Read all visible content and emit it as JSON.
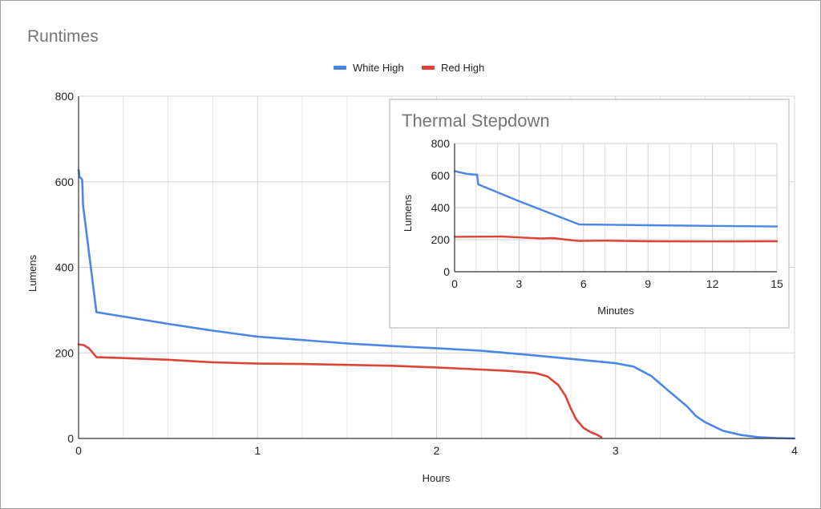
{
  "chart_data": [
    {
      "type": "line",
      "title": "Runtimes",
      "xlabel": "Hours",
      "ylabel": "Lumens",
      "xlim": [
        0,
        4
      ],
      "ylim": [
        0,
        800
      ],
      "x_ticks": [
        "0",
        "1",
        "2",
        "3",
        "4"
      ],
      "y_ticks": [
        "0",
        "200",
        "400",
        "600",
        "800"
      ],
      "x_tick_values": [
        0,
        1,
        2,
        3,
        4
      ],
      "y_tick_values": [
        0,
        200,
        400,
        600,
        800
      ],
      "x_minor_step": 0.25,
      "grid": true,
      "legend": {
        "position": "top",
        "entries": [
          "White High",
          "Red High"
        ]
      },
      "series": [
        {
          "name": "White High",
          "color": "#4a86e8",
          "x": [
            0,
            0.005,
            0.02,
            0.025,
            0.1,
            0.25,
            0.5,
            0.75,
            1.0,
            1.25,
            1.5,
            1.75,
            2.0,
            2.25,
            2.5,
            2.75,
            2.9,
            3.0,
            3.1,
            3.2,
            3.3,
            3.4,
            3.45,
            3.5,
            3.6,
            3.7,
            3.8,
            3.9,
            4.0
          ],
          "y": [
            628,
            612,
            605,
            545,
            295,
            285,
            268,
            252,
            238,
            230,
            222,
            216,
            211,
            205,
            196,
            186,
            180,
            176,
            168,
            146,
            110,
            75,
            52,
            38,
            18,
            8,
            3,
            1,
            0
          ]
        },
        {
          "name": "Red High",
          "color": "#db4437",
          "x": [
            0,
            0.03,
            0.06,
            0.08,
            0.1,
            0.25,
            0.5,
            0.75,
            1.0,
            1.25,
            1.5,
            1.75,
            2.0,
            2.2,
            2.4,
            2.55,
            2.62,
            2.68,
            2.72,
            2.75,
            2.78,
            2.82,
            2.86,
            2.9,
            2.92
          ],
          "y": [
            220,
            218,
            210,
            200,
            190,
            188,
            184,
            178,
            175,
            174,
            172,
            170,
            166,
            162,
            158,
            153,
            145,
            125,
            100,
            70,
            45,
            25,
            15,
            8,
            3
          ]
        }
      ]
    },
    {
      "type": "line",
      "title": "Thermal Stepdown",
      "xlabel": "Minutes",
      "ylabel": "Lumens",
      "xlim": [
        0,
        15
      ],
      "ylim": [
        0,
        800
      ],
      "x_ticks": [
        "0",
        "3",
        "6",
        "9",
        "12",
        "15"
      ],
      "y_ticks": [
        "0",
        "200",
        "400",
        "600",
        "800"
      ],
      "x_tick_values": [
        0,
        3,
        6,
        9,
        12,
        15
      ],
      "y_tick_values": [
        0,
        200,
        400,
        600,
        800
      ],
      "x_minor_step": 1,
      "grid": true,
      "series": [
        {
          "name": "White High",
          "color": "#4a86e8",
          "x": [
            0,
            0.5,
            1.0,
            1.05,
            1.1,
            3.0,
            5.8,
            9.0,
            12.0,
            15.0
          ],
          "y": [
            628,
            612,
            605,
            605,
            545,
            440,
            295,
            290,
            286,
            282
          ]
        },
        {
          "name": "Red High",
          "color": "#db4437",
          "x": [
            0,
            1.5,
            2.2,
            3.0,
            4.0,
            4.6,
            5.2,
            5.8,
            7.0,
            9.0,
            12.0,
            15.0
          ],
          "y": [
            218,
            219,
            220,
            214,
            208,
            210,
            200,
            192,
            194,
            190,
            189,
            190
          ]
        }
      ]
    }
  ]
}
